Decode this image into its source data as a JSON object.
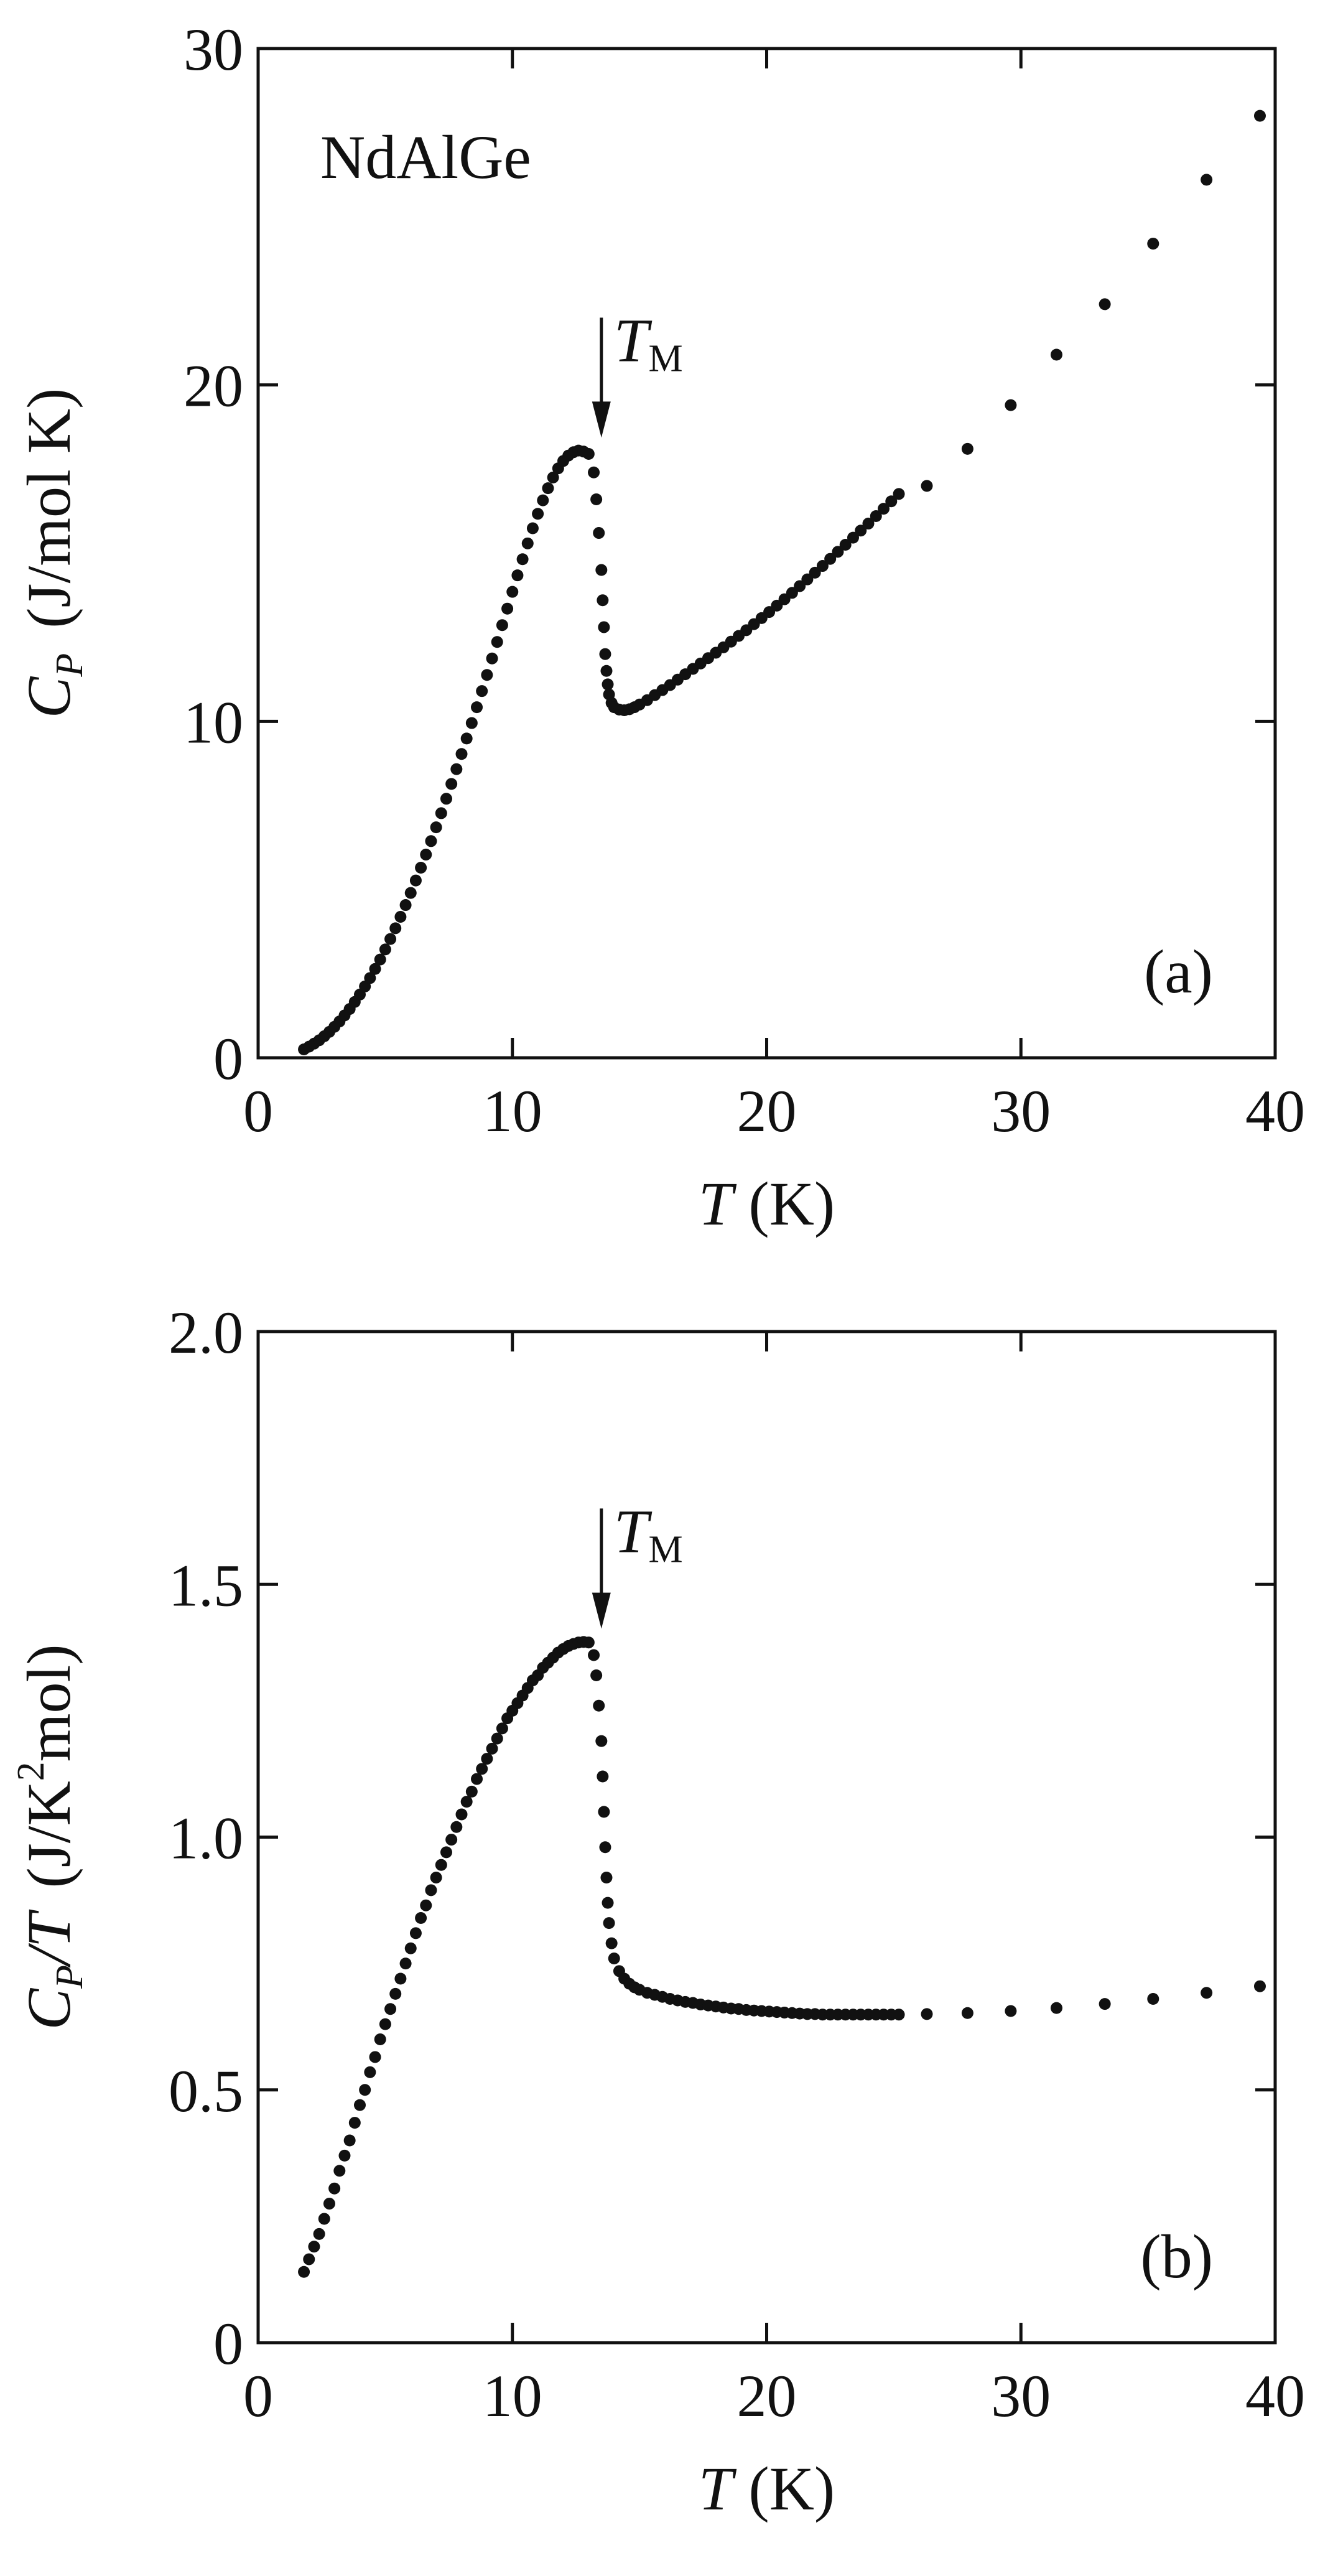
{
  "chart_data": [
    {
      "type": "scatter",
      "panel_label": "(a)",
      "sample_label": "NdAlGe",
      "xlabel": {
        "var": "T",
        "unit": " (K)"
      },
      "ylabel": {
        "var": "C",
        "sub": "P",
        "unit": "(J/mol K)"
      },
      "xlim": [
        0,
        40
      ],
      "ylim": [
        0,
        30
      ],
      "xticks": [
        0,
        10,
        20,
        30,
        40
      ],
      "yticks": [
        0,
        10,
        20,
        30
      ],
      "xtick_labels": [
        "0",
        "10",
        "20",
        "30",
        "40"
      ],
      "ytick_labels": [
        "0",
        "10",
        "20",
        "30"
      ],
      "grid": false,
      "annotation": {
        "var": "T",
        "sub": "M",
        "x": 13.5,
        "y_tip": 18.1,
        "y_tail": 22.0
      },
      "series": [
        {
          "marker": "filled-circle",
          "x": [
            1.8,
            2.0,
            2.2,
            2.4,
            2.6,
            2.8,
            3.0,
            3.2,
            3.4,
            3.6,
            3.8,
            4.0,
            4.2,
            4.4,
            4.6,
            4.8,
            5.0,
            5.2,
            5.4,
            5.6,
            5.8,
            6.0,
            6.2,
            6.4,
            6.6,
            6.8,
            7.0,
            7.2,
            7.4,
            7.6,
            7.8,
            8.0,
            8.2,
            8.4,
            8.6,
            8.8,
            9.0,
            9.2,
            9.4,
            9.6,
            9.8,
            10.0,
            10.2,
            10.4,
            10.6,
            10.8,
            11.0,
            11.2,
            11.4,
            11.6,
            11.8,
            12.0,
            12.2,
            12.4,
            12.6,
            12.8,
            13.0,
            13.2,
            13.3,
            13.4,
            13.5,
            13.55,
            13.6,
            13.65,
            13.7,
            13.75,
            13.8,
            13.9,
            14.0,
            14.2,
            14.4,
            14.6,
            14.8,
            15.0,
            15.3,
            15.6,
            15.9,
            16.2,
            16.5,
            16.8,
            17.1,
            17.4,
            17.7,
            18.0,
            18.3,
            18.6,
            18.9,
            19.2,
            19.5,
            19.8,
            20.1,
            20.4,
            20.7,
            21.0,
            21.3,
            21.6,
            21.9,
            22.2,
            22.5,
            22.8,
            23.1,
            23.4,
            23.7,
            24.0,
            24.3,
            24.6,
            24.9,
            25.2,
            26.3,
            27.9,
            29.6,
            31.4,
            33.3,
            35.2,
            37.3,
            39.4
          ],
          "y": [
            0.25,
            0.33,
            0.42,
            0.52,
            0.64,
            0.77,
            0.92,
            1.08,
            1.26,
            1.45,
            1.66,
            1.88,
            2.12,
            2.37,
            2.64,
            2.92,
            3.22,
            3.53,
            3.85,
            4.19,
            4.54,
            4.9,
            5.27,
            5.65,
            6.04,
            6.44,
            6.85,
            7.27,
            7.7,
            8.14,
            8.58,
            9.03,
            9.49,
            9.95,
            10.42,
            10.9,
            11.38,
            11.87,
            12.36,
            12.86,
            13.35,
            13.85,
            14.34,
            14.82,
            15.29,
            15.74,
            16.17,
            16.57,
            16.93,
            17.25,
            17.52,
            17.74,
            17.9,
            18.0,
            18.05,
            18.02,
            17.95,
            17.4,
            16.6,
            15.6,
            14.5,
            13.6,
            12.8,
            12.0,
            11.5,
            11.1,
            10.8,
            10.55,
            10.42,
            10.35,
            10.33,
            10.36,
            10.42,
            10.5,
            10.63,
            10.78,
            10.93,
            11.08,
            11.24,
            11.4,
            11.56,
            11.72,
            11.88,
            12.04,
            12.2,
            12.37,
            12.54,
            12.71,
            12.89,
            13.07,
            13.25,
            13.44,
            13.63,
            13.82,
            14.02,
            14.22,
            14.42,
            14.62,
            14.83,
            15.04,
            15.25,
            15.46,
            15.67,
            15.88,
            16.1,
            16.32,
            16.54,
            16.76,
            17.0,
            18.1,
            19.4,
            20.9,
            22.4,
            24.2,
            26.1,
            28.0
          ]
        }
      ]
    },
    {
      "type": "scatter",
      "panel_label": "(b)",
      "xlabel": {
        "var": "T",
        "unit": " (K)"
      },
      "ylabel": {
        "var": "C",
        "sub": "P",
        "post": "/T",
        "unit_pre": "(J/K",
        "sup": "2",
        "unit_post": "mol)"
      },
      "xlim": [
        0,
        40
      ],
      "ylim": [
        0,
        2.0
      ],
      "xticks": [
        0,
        10,
        20,
        30,
        40
      ],
      "yticks": [
        0,
        0.5,
        1.0,
        1.5,
        2.0
      ],
      "xtick_labels": [
        "0",
        "10",
        "20",
        "30",
        "40"
      ],
      "ytick_labels": [
        "0",
        "0.5",
        "1.0",
        "1.5",
        "2.0"
      ],
      "grid": false,
      "annotation": {
        "var": "T",
        "sub": "M",
        "x": 13.5,
        "y_tip": 1.39,
        "y_tail": 1.65
      },
      "series": [
        {
          "marker": "filled-circle",
          "x": [
            1.8,
            2.0,
            2.2,
            2.4,
            2.6,
            2.8,
            3.0,
            3.2,
            3.4,
            3.6,
            3.8,
            4.0,
            4.2,
            4.4,
            4.6,
            4.8,
            5.0,
            5.2,
            5.4,
            5.6,
            5.8,
            6.0,
            6.2,
            6.4,
            6.6,
            6.8,
            7.0,
            7.2,
            7.4,
            7.6,
            7.8,
            8.0,
            8.2,
            8.4,
            8.6,
            8.8,
            9.0,
            9.2,
            9.4,
            9.6,
            9.8,
            10.0,
            10.2,
            10.4,
            10.6,
            10.8,
            11.0,
            11.2,
            11.4,
            11.6,
            11.8,
            12.0,
            12.2,
            12.4,
            12.6,
            12.8,
            13.0,
            13.2,
            13.3,
            13.4,
            13.5,
            13.55,
            13.6,
            13.65,
            13.7,
            13.75,
            13.8,
            13.9,
            14.0,
            14.2,
            14.4,
            14.6,
            14.8,
            15.0,
            15.3,
            15.6,
            15.9,
            16.2,
            16.5,
            16.8,
            17.1,
            17.4,
            17.7,
            18.0,
            18.3,
            18.6,
            18.9,
            19.2,
            19.5,
            19.8,
            20.1,
            20.4,
            20.7,
            21.0,
            21.3,
            21.6,
            21.9,
            22.2,
            22.5,
            22.8,
            23.1,
            23.4,
            23.7,
            24.0,
            24.3,
            24.6,
            24.9,
            25.2,
            26.3,
            27.9,
            29.6,
            31.4,
            33.3,
            35.2,
            37.3,
            39.4
          ],
          "y": [
            0.14,
            0.165,
            0.19,
            0.215,
            0.245,
            0.275,
            0.305,
            0.34,
            0.37,
            0.4,
            0.435,
            0.47,
            0.5,
            0.535,
            0.565,
            0.6,
            0.63,
            0.66,
            0.69,
            0.72,
            0.75,
            0.78,
            0.81,
            0.84,
            0.865,
            0.895,
            0.92,
            0.945,
            0.97,
            0.995,
            1.02,
            1.045,
            1.07,
            1.09,
            1.115,
            1.135,
            1.155,
            1.175,
            1.195,
            1.215,
            1.235,
            1.25,
            1.265,
            1.28,
            1.295,
            1.31,
            1.32,
            1.335,
            1.345,
            1.355,
            1.365,
            1.372,
            1.378,
            1.382,
            1.385,
            1.386,
            1.385,
            1.36,
            1.32,
            1.26,
            1.19,
            1.12,
            1.05,
            0.98,
            0.92,
            0.87,
            0.83,
            0.79,
            0.76,
            0.735,
            0.72,
            0.71,
            0.703,
            0.698,
            0.692,
            0.688,
            0.684,
            0.68,
            0.677,
            0.674,
            0.672,
            0.669,
            0.667,
            0.665,
            0.663,
            0.661,
            0.66,
            0.658,
            0.657,
            0.656,
            0.655,
            0.654,
            0.653,
            0.652,
            0.651,
            0.65,
            0.65,
            0.649,
            0.649,
            0.649,
            0.649,
            0.649,
            0.649,
            0.649,
            0.649,
            0.649,
            0.649,
            0.649,
            0.65,
            0.652,
            0.656,
            0.662,
            0.67,
            0.68,
            0.692,
            0.705
          ]
        }
      ]
    }
  ]
}
